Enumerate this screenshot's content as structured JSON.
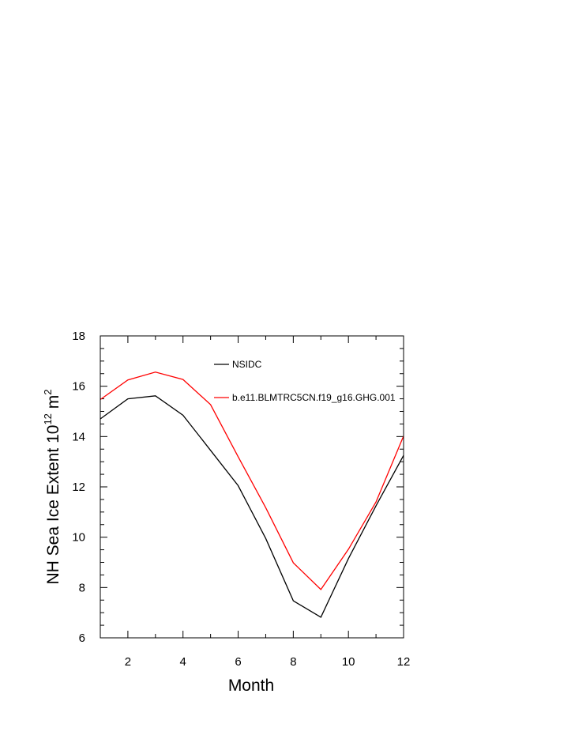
{
  "chart_data": {
    "type": "line",
    "title": "",
    "xlabel": "Month",
    "ylabel": "NH Sea Ice Extent 10",
    "ylabel_sup": "12",
    "ylabel_unit": "m",
    "ylabel_unit_sup": "2",
    "xlim": [
      1,
      12
    ],
    "ylim": [
      6,
      18
    ],
    "x_ticks": [
      2,
      4,
      6,
      8,
      10,
      12
    ],
    "y_ticks": [
      6,
      8,
      10,
      12,
      14,
      16,
      18
    ],
    "x": [
      1,
      2,
      3,
      4,
      5,
      6,
      7,
      8,
      9,
      10,
      11,
      12
    ],
    "series": [
      {
        "name": "NSIDC",
        "color": "#000000",
        "values": [
          14.7,
          15.5,
          15.62,
          14.85,
          13.45,
          12.05,
          9.95,
          7.47,
          6.82,
          9.15,
          11.25,
          13.25
        ]
      },
      {
        "name": "b.e11.BLMTRC5CN.f19_g16.GHG.001",
        "color": "#ff0000",
        "values": [
          15.47,
          16.25,
          16.56,
          16.27,
          15.27,
          13.2,
          11.17,
          8.98,
          7.92,
          9.52,
          11.4,
          14.02
        ]
      }
    ],
    "legend_position": "top-right",
    "grid": false
  }
}
